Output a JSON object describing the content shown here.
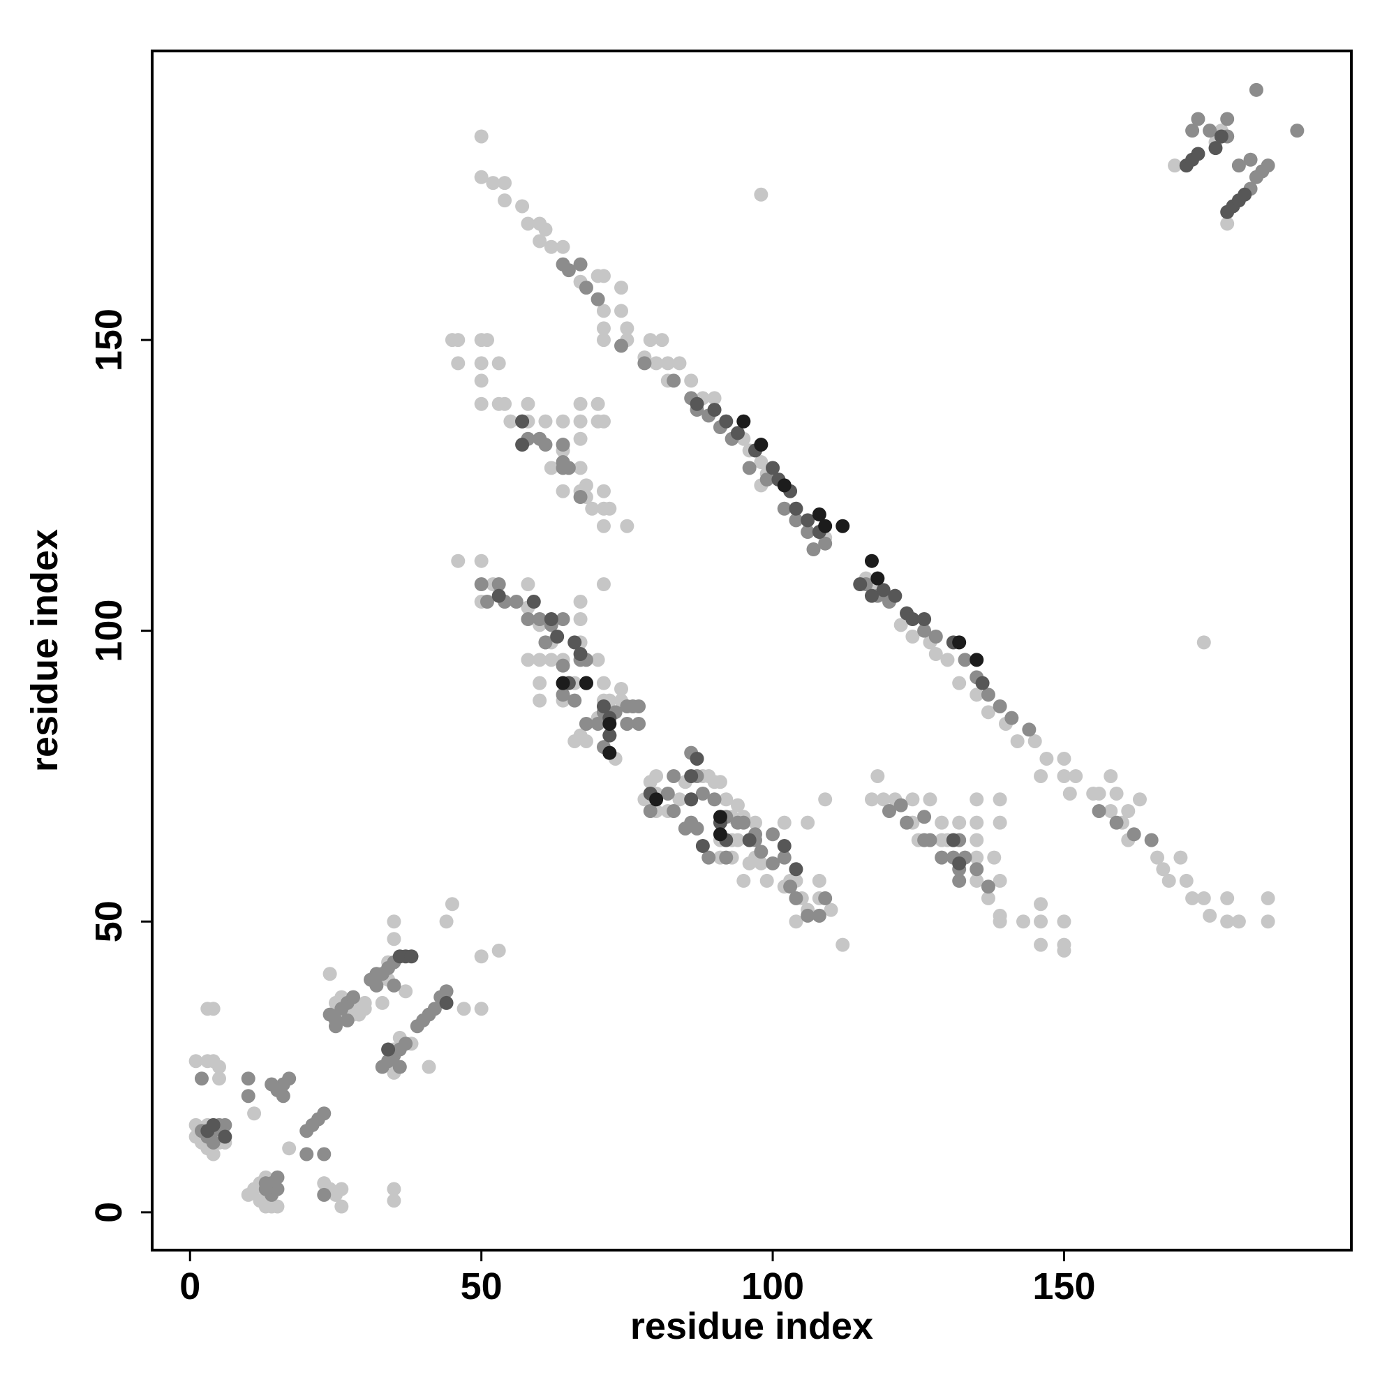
{
  "chart_data": {
    "type": "scatter",
    "x_label": "residue index",
    "y_label": "residue index",
    "xlim": [
      -6.5,
      199.3
    ],
    "ylim": [
      -6.5,
      199.7
    ],
    "xticks": [
      0,
      50,
      100,
      150
    ],
    "yticks": [
      0,
      50,
      100,
      150
    ],
    "series": [
      {
        "color": "#c6c6c6",
        "x": [
          50,
          50,
          52,
          54,
          54,
          57,
          58,
          60,
          61,
          60,
          62,
          64,
          67,
          70,
          71,
          74,
          71,
          74,
          71,
          75,
          71,
          75,
          79,
          81,
          78,
          80,
          82,
          84,
          82,
          86,
          88,
          90,
          92,
          95,
          96,
          98,
          99,
          98,
          109,
          115,
          116,
          118,
          122,
          124,
          127,
          128,
          130,
          132,
          135,
          137,
          140,
          142,
          145,
          147,
          146,
          150,
          150,
          151,
          152,
          155,
          156,
          158,
          159,
          158,
          160,
          161,
          161,
          163,
          166,
          167,
          170,
          168,
          171,
          172,
          174,
          175,
          178,
          178,
          180,
          185,
          185,
          45,
          46,
          50,
          51,
          46,
          50,
          53,
          50,
          50,
          53,
          54,
          55,
          58,
          58,
          61,
          64,
          67,
          67,
          70,
          71,
          70,
          67,
          64,
          62,
          67,
          64,
          67,
          68,
          69,
          71,
          71,
          72,
          71,
          75,
          68,
          46,
          50,
          52,
          50,
          54,
          58,
          58,
          60,
          61,
          62,
          60,
          58,
          62,
          64,
          67,
          67,
          67,
          71,
          70,
          68,
          64,
          60,
          60,
          64,
          66,
          70,
          71,
          71,
          72,
          74,
          74,
          68,
          66,
          67,
          72,
          72,
          75,
          73,
          79,
          80,
          78,
          80,
          80,
          82,
          84,
          85,
          86,
          88,
          89,
          90,
          91,
          92,
          93,
          94,
          95,
          91,
          93,
          94,
          96,
          97,
          93,
          96,
          98,
          99,
          100,
          102,
          103,
          104,
          105,
          108,
          106,
          108,
          108,
          104,
          110,
          112,
          95,
          91,
          102,
          106,
          109,
          97,
          118,
          117,
          119,
          121,
          124,
          127,
          124,
          125,
          129,
          129,
          130,
          132,
          135,
          139,
          135,
          139,
          135,
          135,
          138,
          135,
          139,
          137,
          139,
          139,
          143,
          146,
          146,
          146,
          150,
          150,
          150,
          169,
          175,
          176,
          177,
          178,
          178,
          98,
          174,
          3,
          4,
          1,
          3,
          4,
          5,
          5,
          1,
          1,
          2,
          3,
          4,
          3,
          5,
          6,
          10,
          11,
          12,
          12,
          13,
          14,
          15,
          13,
          11,
          17,
          23,
          24,
          25,
          26,
          26,
          35,
          35,
          24,
          25,
          26,
          27,
          28,
          29,
          30,
          34,
          35,
          35,
          44,
          45,
          50,
          53,
          47,
          50,
          35,
          36,
          34,
          35,
          36,
          38,
          30,
          29,
          41,
          33,
          37,
          34
        ],
        "y": [
          185,
          178,
          177,
          177,
          174,
          173,
          170,
          170,
          169,
          167,
          166,
          166,
          160,
          161,
          161,
          159,
          155,
          155,
          152,
          152,
          150,
          150,
          150,
          150,
          147,
          146,
          146,
          146,
          143,
          143,
          140,
          140,
          136,
          133,
          131,
          129,
          127,
          125,
          116,
          108,
          109,
          107,
          101,
          99,
          98,
          96,
          95,
          91,
          89,
          86,
          84,
          81,
          81,
          78,
          75,
          78,
          75,
          72,
          75,
          72,
          72,
          75,
          72,
          69,
          67,
          64,
          69,
          71,
          61,
          59,
          61,
          57,
          57,
          54,
          54,
          51,
          54,
          50,
          50,
          50,
          54,
          150,
          150,
          150,
          150,
          146,
          146,
          146,
          143,
          139,
          139,
          139,
          136,
          139,
          136,
          136,
          136,
          139,
          136,
          136,
          136,
          139,
          133,
          131,
          128,
          128,
          124,
          124,
          125,
          121,
          124,
          121,
          121,
          118,
          118,
          123,
          112,
          112,
          108,
          105,
          105,
          108,
          104,
          101,
          98,
          98,
          95,
          95,
          95,
          95,
          98,
          102,
          105,
          108,
          95,
          91,
          91,
          91,
          88,
          88,
          91,
          85,
          88,
          91,
          88,
          90,
          88,
          81,
          81,
          82,
          79,
          85,
          84,
          78,
          74,
          75,
          71,
          72,
          69,
          69,
          71,
          74,
          71,
          75,
          75,
          74,
          74,
          71,
          68,
          70,
          68,
          64,
          64,
          64,
          64,
          61,
          61,
          60,
          60,
          57,
          60,
          56,
          57,
          57,
          54,
          57,
          52,
          51,
          54,
          50,
          52,
          46,
          57,
          61,
          67,
          67,
          71,
          67,
          75,
          71,
          71,
          71,
          71,
          71,
          67,
          64,
          64,
          67,
          64,
          67,
          71,
          71,
          67,
          67,
          64,
          61,
          61,
          57,
          57,
          54,
          51,
          50,
          50,
          50,
          53,
          46,
          50,
          46,
          45,
          180,
          186,
          184,
          186,
          185,
          170,
          175,
          98,
          35,
          35,
          26,
          26,
          26,
          25,
          23,
          15,
          13,
          12,
          11,
          10,
          15,
          12,
          12,
          3,
          4,
          5,
          2,
          1,
          1,
          1,
          6,
          17,
          11,
          5,
          4,
          3,
          4,
          1,
          4,
          2,
          41,
          36,
          37,
          36,
          34,
          35,
          36,
          43,
          47,
          50,
          50,
          53,
          44,
          45,
          35,
          35,
          28,
          30,
          26,
          24,
          25,
          29,
          35,
          34,
          25,
          36,
          38,
          40
        ]
      },
      {
        "color": "#8c8c8c",
        "x": [
          64,
          65,
          67,
          68,
          70,
          74,
          78,
          83,
          86,
          87,
          89,
          91,
          93,
          96,
          99,
          102,
          104,
          106,
          107,
          109,
          116,
          118,
          120,
          126,
          128,
          133,
          135,
          137,
          139,
          141,
          144,
          156,
          159,
          162,
          165,
          57,
          58,
          60,
          61,
          64,
          64,
          65,
          67,
          64,
          50,
          51,
          53,
          54,
          56,
          58,
          60,
          62,
          64,
          61,
          64,
          67,
          68,
          64,
          66,
          68,
          70,
          71,
          71,
          73,
          75,
          75,
          77,
          76,
          77,
          72,
          82,
          83,
          85,
          86,
          87,
          88,
          90,
          92,
          94,
          95,
          97,
          89,
          92,
          97,
          98,
          100,
          100,
          102,
          103,
          104,
          106,
          108,
          109,
          83,
          87,
          86,
          79,
          120,
          122,
          123,
          126,
          127,
          129,
          131,
          132,
          133,
          135,
          137,
          126,
          132,
          132,
          172,
          173,
          175,
          178,
          178,
          180,
          182,
          183,
          184,
          185,
          183,
          190,
          182,
          2,
          3,
          4,
          5,
          6,
          2,
          4,
          10,
          10,
          14,
          14,
          15,
          15,
          13,
          15,
          16,
          17,
          14,
          16,
          20,
          21,
          22,
          23,
          20,
          23,
          23,
          24,
          25,
          26,
          27,
          28,
          25,
          27,
          31,
          32,
          33,
          34,
          35,
          33,
          34,
          35,
          36,
          37,
          36,
          39,
          40,
          41,
          42,
          43,
          44,
          13,
          32,
          35
        ],
        "y": [
          163,
          162,
          163,
          159,
          157,
          149,
          146,
          143,
          140,
          138,
          137,
          135,
          133,
          128,
          126,
          121,
          119,
          117,
          114,
          115,
          108,
          106,
          105,
          100,
          99,
          95,
          92,
          89,
          87,
          85,
          83,
          69,
          67,
          65,
          64,
          136,
          133,
          133,
          132,
          132,
          129,
          128,
          123,
          128,
          108,
          105,
          108,
          105,
          105,
          102,
          102,
          101,
          102,
          98,
          94,
          95,
          95,
          89,
          88,
          84,
          84,
          80,
          86,
          86,
          84,
          87,
          84,
          87,
          87,
          82,
          72,
          69,
          66,
          67,
          66,
          72,
          71,
          68,
          67,
          67,
          65,
          61,
          61,
          64,
          62,
          65,
          60,
          61,
          56,
          54,
          51,
          51,
          54,
          75,
          75,
          79,
          69,
          69,
          70,
          67,
          68,
          64,
          61,
          61,
          59,
          61,
          59,
          56,
          64,
          57,
          64,
          186,
          188,
          186,
          188,
          185,
          180,
          181,
          178,
          179,
          180,
          193,
          186,
          176,
          23,
          13,
          14,
          15,
          15,
          14,
          12,
          20,
          23,
          5,
          3,
          4,
          6,
          4,
          21,
          22,
          23,
          22,
          20,
          14,
          15,
          16,
          17,
          10,
          10,
          3,
          34,
          33,
          35,
          36,
          37,
          32,
          33,
          40,
          41,
          41,
          42,
          43,
          25,
          26,
          27,
          28,
          29,
          25,
          32,
          33,
          34,
          35,
          37,
          38,
          5,
          39,
          39
        ]
      },
      {
        "color": "#575757",
        "x": [
          87,
          90,
          92,
          94,
          97,
          100,
          101,
          103,
          104,
          106,
          108,
          115,
          117,
          119,
          121,
          123,
          124,
          126,
          131,
          136,
          57,
          57,
          53,
          59,
          62,
          63,
          66,
          67,
          65,
          68,
          71,
          72,
          72,
          79,
          80,
          86,
          86,
          87,
          91,
          92,
          96,
          102,
          104,
          88,
          131,
          132,
          171,
          172,
          173,
          176,
          177,
          178,
          179,
          180,
          181,
          3,
          4,
          6,
          36,
          37,
          38,
          44,
          34
        ],
        "y": [
          139,
          138,
          136,
          134,
          131,
          128,
          126,
          124,
          121,
          119,
          117,
          108,
          106,
          107,
          106,
          103,
          102,
          102,
          98,
          91,
          136,
          132,
          106,
          105,
          102,
          99,
          98,
          96,
          91,
          91,
          87,
          85,
          82,
          72,
          71,
          71,
          75,
          78,
          67,
          64,
          64,
          63,
          59,
          63,
          64,
          60,
          180,
          181,
          182,
          183,
          185,
          172,
          173,
          174,
          175,
          14,
          15,
          13,
          44,
          44,
          44,
          36,
          28
        ]
      },
      {
        "color": "#1c1c1c",
        "x": [
          95,
          98,
          102,
          108,
          109,
          112,
          117,
          118,
          132,
          135,
          64,
          68,
          72,
          72,
          80,
          91,
          91
        ],
        "y": [
          136,
          132,
          125,
          120,
          118,
          118,
          112,
          109,
          98,
          95,
          91,
          91,
          79,
          84,
          71,
          65,
          68
        ]
      }
    ]
  }
}
